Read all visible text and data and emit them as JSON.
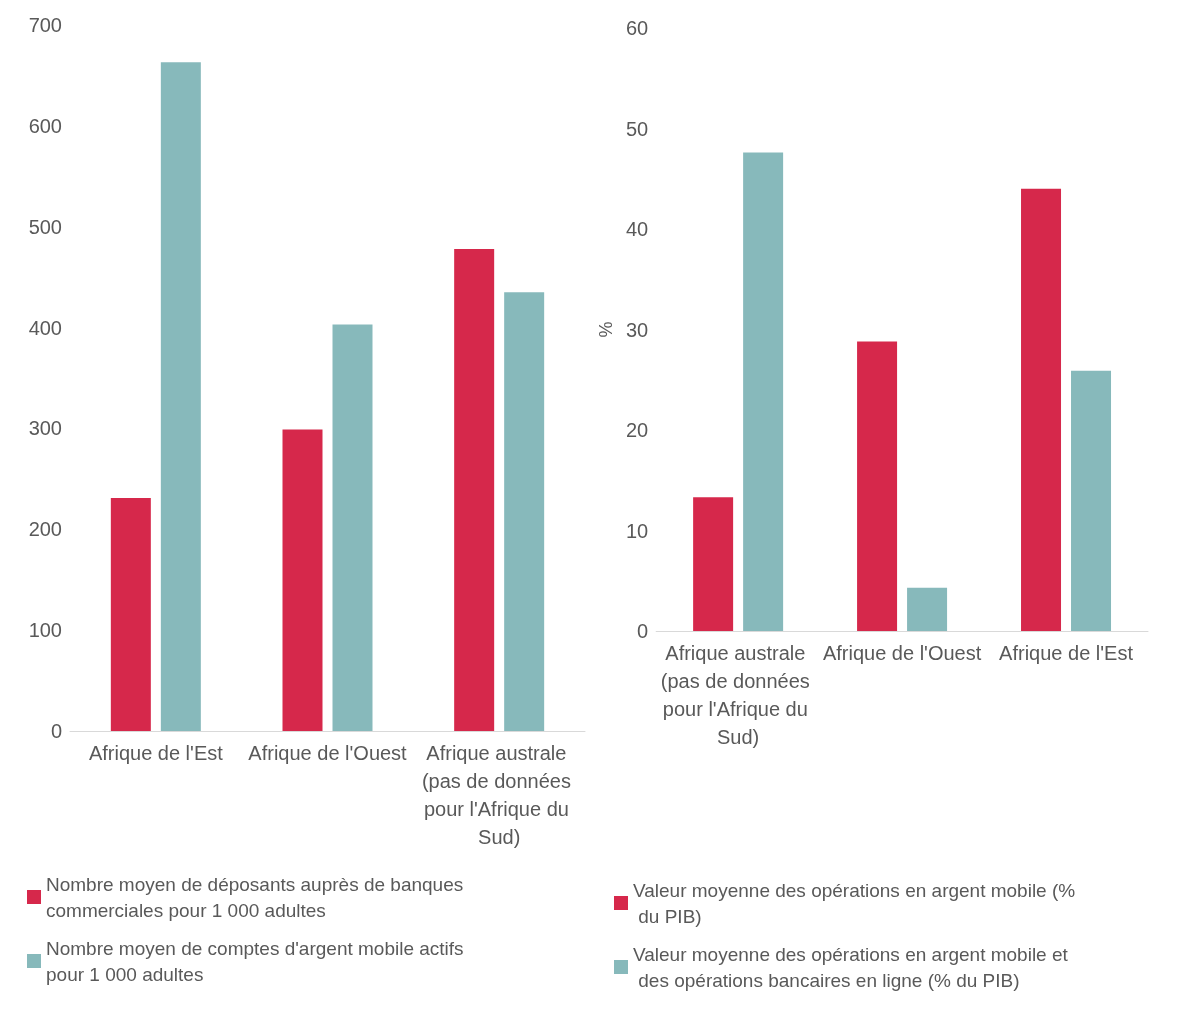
{
  "chart_data": [
    {
      "type": "bar",
      "categories": [
        "Afrique de l'Est",
        "Afrique de l'Ouest",
        "Afrique australe (pas de données pour l'Afrique du Sud)"
      ],
      "series": [
        {
          "name": "Nombre moyen de déposants auprès de banques commerciales pour 1 000 adultes",
          "color": "#d6284b",
          "values": [
            231,
            299,
            478
          ]
        },
        {
          "name": "Nombre moyen de comptes d'argent mobile actifs pour 1 000 adultes",
          "color": "#87b9bb",
          "values": [
            663,
            403,
            435
          ]
        }
      ],
      "ylim": [
        0,
        700
      ],
      "yticks": [
        0,
        100,
        200,
        300,
        400,
        500,
        600,
        700
      ],
      "grid": false,
      "legend": "bottom"
    },
    {
      "type": "bar",
      "ylabel": "%",
      "categories": [
        "Afrique australe (pas de données pour l'Afrique du Sud)",
        "Afrique de l'Ouest",
        "Afrique de l'Est"
      ],
      "series": [
        {
          "name": "Valeur moyenne des opérations en argent mobile (% du PIB)",
          "color": "#d6284b",
          "values": [
            13.3,
            28.8,
            44.0
          ]
        },
        {
          "name": "Valeur moyenne des opérations en argent mobile et des opérations bancaires en ligne (% du PIB)",
          "color": "#87b9bb",
          "values": [
            47.6,
            4.3,
            25.9
          ]
        }
      ],
      "ylim": [
        0,
        60
      ],
      "yticks": [
        0,
        10,
        20,
        30,
        40,
        50,
        60
      ],
      "grid": false,
      "legend": "bottom"
    }
  ]
}
